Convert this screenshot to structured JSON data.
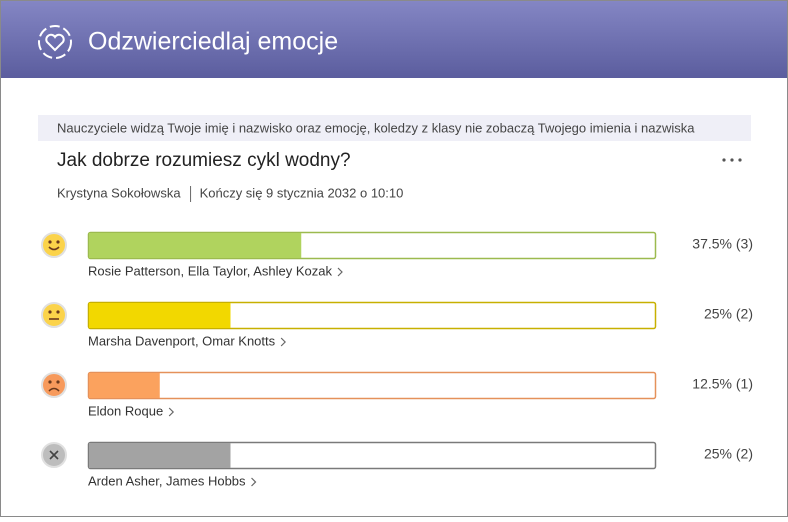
{
  "header": {
    "title": "Odzwierciedlaj emocje"
  },
  "notice": "Nauczyciele widzą Twoje imię i nazwisko oraz emocję, koledzy z klasy nie zobaczą Twojego imienia i nazwiska",
  "question": "Jak dobrze rozumiesz cykl wodny?",
  "author": "Krystyna Sokołowska",
  "deadline": "Kończy się 9 stycznia 2032 o 10:10",
  "responses": [
    {
      "names": "Rosie Patterson, Ella Taylor, Ashley Kozak",
      "percent": 37.5,
      "count": 3,
      "value_label": "37.5% (3)",
      "color": "#b0d35e",
      "border": "#9cba4f"
    },
    {
      "names": "Marsha Davenport, Omar Knotts",
      "percent": 25,
      "count": 2,
      "value_label": "25% (2)",
      "color": "#f2d800",
      "border": "#c7b000"
    },
    {
      "names": "Eldon Roque",
      "percent": 12.5,
      "count": 1,
      "value_label": "12.5% (1)",
      "color": "#fba25e",
      "border": "#e5915a"
    },
    {
      "names": "Arden Asher, James Hobbs",
      "percent": 25,
      "count": 2,
      "value_label": "25% (2)",
      "color": "#a3a3a3",
      "border": "#7a7a7a"
    }
  ]
}
